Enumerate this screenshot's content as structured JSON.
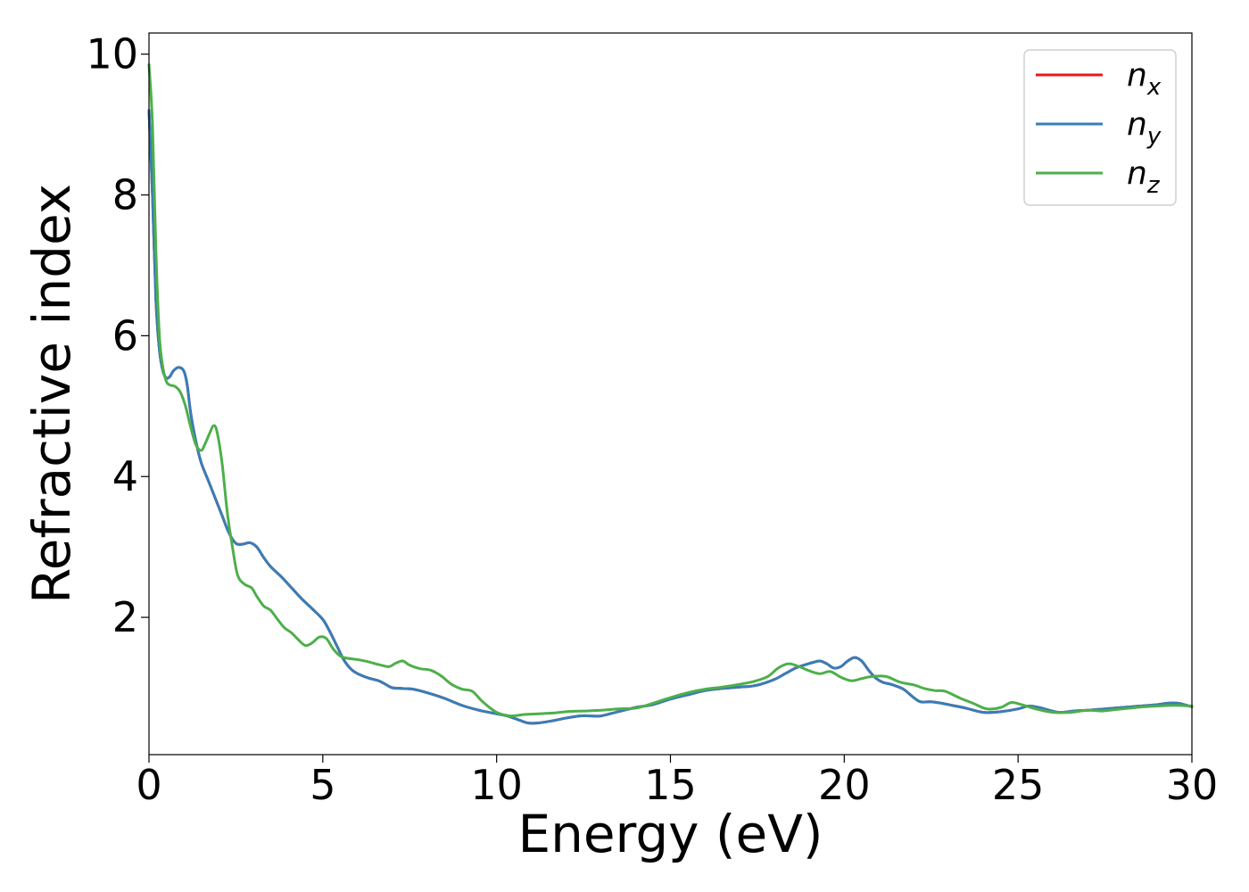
{
  "chart_data": {
    "type": "line",
    "title": "",
    "xlabel": "Energy (eV)",
    "ylabel": "Refractive index",
    "xlim": [
      0,
      30
    ],
    "ylim": [
      0.05,
      10.3
    ],
    "xticks": [
      0,
      5,
      10,
      15,
      20,
      25,
      30
    ],
    "yticks": [
      2,
      4,
      6,
      8,
      10
    ],
    "grid": false,
    "legend_position": "top-right",
    "series": [
      {
        "name_base": "n",
        "name_sub": "x",
        "color": "#e41a1c",
        "x": [
          0,
          0.1,
          0.2,
          0.3,
          0.4,
          0.5,
          0.6,
          0.7,
          0.85,
          1.0,
          1.1,
          1.2,
          1.35,
          1.5,
          1.7,
          1.9,
          2.1,
          2.3,
          2.5,
          2.7,
          2.9,
          3.1,
          3.3,
          3.5,
          3.8,
          4.1,
          4.4,
          4.7,
          5.0,
          5.2,
          5.4,
          5.6,
          5.8,
          6.0,
          6.3,
          6.6,
          6.8,
          7.0,
          7.3,
          7.6,
          8.0,
          8.5,
          9.0,
          9.5,
          10.0,
          10.3,
          10.6,
          10.9,
          11.2,
          11.6,
          12.0,
          12.4,
          12.7,
          13.0,
          13.5,
          14.0,
          14.5,
          15.0,
          15.5,
          16.0,
          16.5,
          17.0,
          17.3,
          17.6,
          18.0,
          18.3,
          18.6,
          18.9,
          19.1,
          19.3,
          19.5,
          19.7,
          19.9,
          20.1,
          20.3,
          20.5,
          20.7,
          20.9,
          21.1,
          21.4,
          21.7,
          22.0,
          22.2,
          22.5,
          22.8,
          23.1,
          23.5,
          24.0,
          24.5,
          25.0,
          25.3,
          25.6,
          25.9,
          26.2,
          26.6,
          27.0,
          27.5,
          28.0,
          28.5,
          29.0,
          29.3,
          29.6,
          30.0
        ],
        "y": [
          9.2,
          8.0,
          6.5,
          5.8,
          5.5,
          5.4,
          5.42,
          5.5,
          5.55,
          5.5,
          5.3,
          4.9,
          4.5,
          4.2,
          3.95,
          3.7,
          3.45,
          3.2,
          3.05,
          3.04,
          3.06,
          3.0,
          2.85,
          2.72,
          2.58,
          2.42,
          2.26,
          2.12,
          1.97,
          1.8,
          1.6,
          1.4,
          1.27,
          1.2,
          1.14,
          1.1,
          1.05,
          1.0,
          0.99,
          0.98,
          0.93,
          0.85,
          0.75,
          0.68,
          0.63,
          0.6,
          0.55,
          0.5,
          0.5,
          0.53,
          0.57,
          0.6,
          0.6,
          0.6,
          0.66,
          0.72,
          0.76,
          0.84,
          0.9,
          0.96,
          0.99,
          1.01,
          1.02,
          1.05,
          1.12,
          1.2,
          1.28,
          1.33,
          1.36,
          1.38,
          1.34,
          1.28,
          1.3,
          1.38,
          1.43,
          1.38,
          1.25,
          1.14,
          1.08,
          1.04,
          0.98,
          0.86,
          0.8,
          0.8,
          0.78,
          0.75,
          0.71,
          0.65,
          0.66,
          0.7,
          0.74,
          0.72,
          0.68,
          0.65,
          0.67,
          0.68,
          0.7,
          0.72,
          0.74,
          0.76,
          0.78,
          0.78,
          0.73
        ]
      },
      {
        "name_base": "n",
        "name_sub": "y",
        "color": "#377eb8",
        "x": [
          0,
          0.1,
          0.2,
          0.3,
          0.4,
          0.5,
          0.6,
          0.7,
          0.85,
          1.0,
          1.1,
          1.2,
          1.35,
          1.5,
          1.7,
          1.9,
          2.1,
          2.3,
          2.5,
          2.7,
          2.9,
          3.1,
          3.3,
          3.5,
          3.8,
          4.1,
          4.4,
          4.7,
          5.0,
          5.2,
          5.4,
          5.6,
          5.8,
          6.0,
          6.3,
          6.6,
          6.8,
          7.0,
          7.3,
          7.6,
          8.0,
          8.5,
          9.0,
          9.5,
          10.0,
          10.3,
          10.6,
          10.9,
          11.2,
          11.6,
          12.0,
          12.4,
          12.7,
          13.0,
          13.5,
          14.0,
          14.5,
          15.0,
          15.5,
          16.0,
          16.5,
          17.0,
          17.3,
          17.6,
          18.0,
          18.3,
          18.6,
          18.9,
          19.1,
          19.3,
          19.5,
          19.7,
          19.9,
          20.1,
          20.3,
          20.5,
          20.7,
          20.9,
          21.1,
          21.4,
          21.7,
          22.0,
          22.2,
          22.5,
          22.8,
          23.1,
          23.5,
          24.0,
          24.5,
          25.0,
          25.3,
          25.6,
          25.9,
          26.2,
          26.6,
          27.0,
          27.5,
          28.0,
          28.5,
          29.0,
          29.3,
          29.6,
          30.0
        ],
        "y": [
          9.2,
          8.0,
          6.5,
          5.8,
          5.5,
          5.4,
          5.42,
          5.5,
          5.55,
          5.5,
          5.3,
          4.9,
          4.5,
          4.2,
          3.95,
          3.7,
          3.45,
          3.2,
          3.05,
          3.04,
          3.06,
          3.0,
          2.85,
          2.72,
          2.58,
          2.42,
          2.26,
          2.12,
          1.97,
          1.8,
          1.6,
          1.4,
          1.27,
          1.2,
          1.14,
          1.1,
          1.05,
          1.0,
          0.99,
          0.98,
          0.93,
          0.85,
          0.75,
          0.68,
          0.63,
          0.6,
          0.55,
          0.5,
          0.5,
          0.53,
          0.57,
          0.6,
          0.6,
          0.6,
          0.66,
          0.72,
          0.76,
          0.84,
          0.9,
          0.96,
          0.99,
          1.01,
          1.02,
          1.05,
          1.12,
          1.2,
          1.28,
          1.33,
          1.36,
          1.38,
          1.34,
          1.28,
          1.3,
          1.38,
          1.43,
          1.38,
          1.25,
          1.14,
          1.08,
          1.04,
          0.98,
          0.86,
          0.8,
          0.8,
          0.78,
          0.75,
          0.71,
          0.65,
          0.66,
          0.7,
          0.74,
          0.72,
          0.68,
          0.65,
          0.67,
          0.68,
          0.7,
          0.72,
          0.74,
          0.76,
          0.78,
          0.78,
          0.73
        ]
      },
      {
        "name_base": "n",
        "name_sub": "z",
        "color": "#4daf4a",
        "x": [
          0,
          0.1,
          0.2,
          0.3,
          0.4,
          0.5,
          0.6,
          0.75,
          0.9,
          1.05,
          1.2,
          1.35,
          1.5,
          1.6,
          1.75,
          1.85,
          1.95,
          2.1,
          2.25,
          2.4,
          2.55,
          2.75,
          2.95,
          3.1,
          3.3,
          3.5,
          3.7,
          3.9,
          4.1,
          4.3,
          4.5,
          4.7,
          4.9,
          5.1,
          5.3,
          5.5,
          5.7,
          6.0,
          6.3,
          6.6,
          6.9,
          7.1,
          7.3,
          7.5,
          7.8,
          8.1,
          8.4,
          8.7,
          9.0,
          9.3,
          9.6,
          10.0,
          10.4,
          10.8,
          11.2,
          11.6,
          12.0,
          12.5,
          13.0,
          13.5,
          14.0,
          14.5,
          15.0,
          15.5,
          16.0,
          16.5,
          17.0,
          17.4,
          17.8,
          18.1,
          18.4,
          18.7,
          19.0,
          19.3,
          19.6,
          19.9,
          20.2,
          20.5,
          20.8,
          21.2,
          21.6,
          22.0,
          22.3,
          22.6,
          22.9,
          23.3,
          23.7,
          24.1,
          24.5,
          24.8,
          25.1,
          25.5,
          26.0,
          26.5,
          27.0,
          27.4,
          27.8,
          28.2,
          28.6,
          29.0,
          29.5,
          30.0
        ],
        "y": [
          9.85,
          9.0,
          7.2,
          6.0,
          5.55,
          5.35,
          5.3,
          5.28,
          5.2,
          5.0,
          4.7,
          4.45,
          4.37,
          4.45,
          4.62,
          4.72,
          4.65,
          4.2,
          3.5,
          3.0,
          2.6,
          2.47,
          2.42,
          2.3,
          2.16,
          2.1,
          1.97,
          1.85,
          1.78,
          1.68,
          1.6,
          1.64,
          1.72,
          1.7,
          1.55,
          1.45,
          1.42,
          1.4,
          1.37,
          1.33,
          1.3,
          1.35,
          1.38,
          1.32,
          1.27,
          1.25,
          1.17,
          1.05,
          0.98,
          0.95,
          0.8,
          0.65,
          0.6,
          0.62,
          0.63,
          0.64,
          0.66,
          0.67,
          0.68,
          0.7,
          0.71,
          0.78,
          0.86,
          0.93,
          0.98,
          1.01,
          1.05,
          1.09,
          1.16,
          1.28,
          1.34,
          1.3,
          1.24,
          1.2,
          1.23,
          1.15,
          1.1,
          1.13,
          1.16,
          1.16,
          1.08,
          1.04,
          0.99,
          0.96,
          0.95,
          0.86,
          0.78,
          0.7,
          0.72,
          0.79,
          0.76,
          0.7,
          0.65,
          0.65,
          0.68,
          0.67,
          0.69,
          0.71,
          0.73,
          0.74,
          0.75,
          0.74
        ]
      }
    ]
  }
}
